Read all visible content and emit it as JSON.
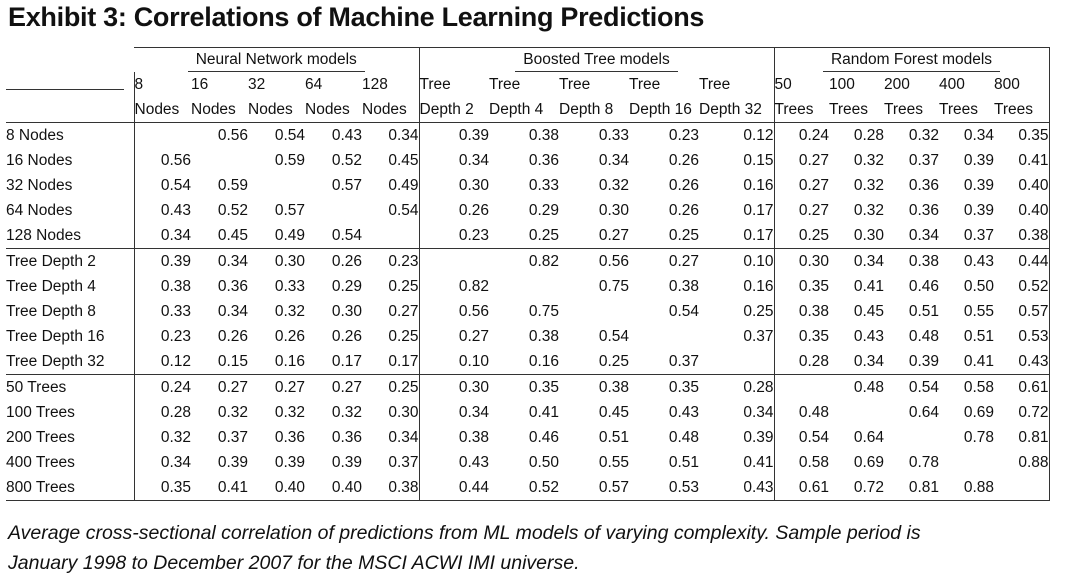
{
  "title": "Exhibit 3: Correlations of Machine Learning Predictions",
  "groups": [
    {
      "label": "Neural Network models"
    },
    {
      "label": "Boosted Tree models"
    },
    {
      "label": "Random Forest models"
    }
  ],
  "columns": [
    {
      "line1": "8",
      "line2": "Nodes"
    },
    {
      "line1": "16",
      "line2": "Nodes"
    },
    {
      "line1": "32",
      "line2": "Nodes"
    },
    {
      "line1": "64",
      "line2": "Nodes"
    },
    {
      "line1": "128",
      "line2": "Nodes"
    },
    {
      "line1": "Tree",
      "line2": "Depth 2"
    },
    {
      "line1": "Tree",
      "line2": "Depth 4"
    },
    {
      "line1": "Tree",
      "line2": "Depth 8"
    },
    {
      "line1": "Tree",
      "line2": "Depth 16"
    },
    {
      "line1": "Tree",
      "line2": "Depth 32"
    },
    {
      "line1": "50",
      "line2": "Trees"
    },
    {
      "line1": "100",
      "line2": "Trees"
    },
    {
      "line1": "200",
      "line2": "Trees"
    },
    {
      "line1": "400",
      "line2": "Trees"
    },
    {
      "line1": "800",
      "line2": "Trees"
    }
  ],
  "rows": [
    {
      "label": "8 Nodes",
      "values": [
        "",
        "0.56",
        "0.54",
        "0.43",
        "0.34",
        "0.39",
        "0.38",
        "0.33",
        "0.23",
        "0.12",
        "0.24",
        "0.28",
        "0.32",
        "0.34",
        "0.35"
      ]
    },
    {
      "label": "16 Nodes",
      "values": [
        "0.56",
        "",
        "0.59",
        "0.52",
        "0.45",
        "0.34",
        "0.36",
        "0.34",
        "0.26",
        "0.15",
        "0.27",
        "0.32",
        "0.37",
        "0.39",
        "0.41"
      ]
    },
    {
      "label": "32 Nodes",
      "values": [
        "0.54",
        "0.59",
        "",
        "0.57",
        "0.49",
        "0.30",
        "0.33",
        "0.32",
        "0.26",
        "0.16",
        "0.27",
        "0.32",
        "0.36",
        "0.39",
        "0.40"
      ]
    },
    {
      "label": "64 Nodes",
      "values": [
        "0.43",
        "0.52",
        "0.57",
        "",
        "0.54",
        "0.26",
        "0.29",
        "0.30",
        "0.26",
        "0.17",
        "0.27",
        "0.32",
        "0.36",
        "0.39",
        "0.40"
      ]
    },
    {
      "label": "128 Nodes",
      "values": [
        "0.34",
        "0.45",
        "0.49",
        "0.54",
        "",
        "0.23",
        "0.25",
        "0.27",
        "0.25",
        "0.17",
        "0.25",
        "0.30",
        "0.34",
        "0.37",
        "0.38"
      ]
    },
    {
      "label": "Tree Depth 2",
      "values": [
        "0.39",
        "0.34",
        "0.30",
        "0.26",
        "0.23",
        "",
        "0.82",
        "0.56",
        "0.27",
        "0.10",
        "0.30",
        "0.34",
        "0.38",
        "0.43",
        "0.44"
      ]
    },
    {
      "label": "Tree Depth 4",
      "values": [
        "0.38",
        "0.36",
        "0.33",
        "0.29",
        "0.25",
        "0.82",
        "",
        "0.75",
        "0.38",
        "0.16",
        "0.35",
        "0.41",
        "0.46",
        "0.50",
        "0.52"
      ]
    },
    {
      "label": "Tree Depth 8",
      "values": [
        "0.33",
        "0.34",
        "0.32",
        "0.30",
        "0.27",
        "0.56",
        "0.75",
        "",
        "0.54",
        "0.25",
        "0.38",
        "0.45",
        "0.51",
        "0.55",
        "0.57"
      ]
    },
    {
      "label": "Tree Depth 16",
      "values": [
        "0.23",
        "0.26",
        "0.26",
        "0.26",
        "0.25",
        "0.27",
        "0.38",
        "0.54",
        "",
        "0.37",
        "0.35",
        "0.43",
        "0.48",
        "0.51",
        "0.53"
      ]
    },
    {
      "label": "Tree Depth 32",
      "values": [
        "0.12",
        "0.15",
        "0.16",
        "0.17",
        "0.17",
        "0.10",
        "0.16",
        "0.25",
        "0.37",
        "",
        "0.28",
        "0.34",
        "0.39",
        "0.41",
        "0.43"
      ]
    },
    {
      "label": "50 Trees",
      "values": [
        "0.24",
        "0.27",
        "0.27",
        "0.27",
        "0.25",
        "0.30",
        "0.35",
        "0.38",
        "0.35",
        "0.28",
        "",
        "0.48",
        "0.54",
        "0.58",
        "0.61"
      ]
    },
    {
      "label": "100 Trees",
      "values": [
        "0.28",
        "0.32",
        "0.32",
        "0.32",
        "0.30",
        "0.34",
        "0.41",
        "0.45",
        "0.43",
        "0.34",
        "0.48",
        "",
        "0.64",
        "0.69",
        "0.72"
      ]
    },
    {
      "label": "200 Trees",
      "values": [
        "0.32",
        "0.37",
        "0.36",
        "0.36",
        "0.34",
        "0.38",
        "0.46",
        "0.51",
        "0.48",
        "0.39",
        "0.54",
        "0.64",
        "",
        "0.78",
        "0.81"
      ]
    },
    {
      "label": "400 Trees",
      "values": [
        "0.34",
        "0.39",
        "0.39",
        "0.39",
        "0.37",
        "0.43",
        "0.50",
        "0.55",
        "0.51",
        "0.41",
        "0.58",
        "0.69",
        "0.78",
        "",
        "0.88"
      ]
    },
    {
      "label": "800 Trees",
      "values": [
        "0.35",
        "0.41",
        "0.40",
        "0.40",
        "0.38",
        "0.44",
        "0.52",
        "0.57",
        "0.53",
        "0.43",
        "0.61",
        "0.72",
        "0.81",
        "0.88",
        ""
      ]
    }
  ],
  "caption": {
    "line1": "Average cross-sectional correlation of predictions from ML models of varying complexity. Sample period is",
    "line2": "January 1998 to December 2007 for the MSCI ACWI IMI universe."
  }
}
